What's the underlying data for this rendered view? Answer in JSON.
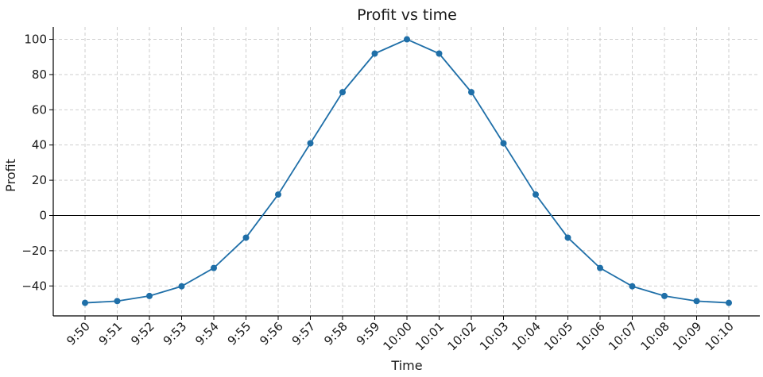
{
  "chart_data": {
    "type": "line",
    "title": "Profit vs time",
    "xlabel": "Time",
    "ylabel": "Profit",
    "categories": [
      "9:50",
      "9:51",
      "9:52",
      "9:53",
      "9:54",
      "9:55",
      "9:56",
      "9:57",
      "9:58",
      "9:59",
      "10:00",
      "10:01",
      "10:02",
      "10:03",
      "10:04",
      "10:05",
      "10:06",
      "10:07",
      "10:08",
      "10:09",
      "10:10"
    ],
    "series": [
      {
        "values": [
          -49.6,
          -48.6,
          -45.7,
          -40.2,
          -29.8,
          -12.6,
          11.9,
          41.0,
          70.0,
          91.9,
          100.0,
          91.9,
          70.0,
          41.0,
          11.9,
          -12.6,
          -29.8,
          -40.2,
          -45.7,
          -48.6,
          -49.6
        ],
        "color": "#1f6fa8"
      }
    ],
    "ylim": [
      -57,
      107
    ],
    "yticks": [
      -40,
      -20,
      0,
      20,
      40,
      60,
      80,
      100
    ],
    "ytick_labels": [
      "−40",
      "−20",
      "0",
      "20",
      "40",
      "60",
      "80",
      "100"
    ],
    "reference_line_y": 0,
    "grid": true,
    "grid_style": "dashed",
    "legend": "none"
  }
}
